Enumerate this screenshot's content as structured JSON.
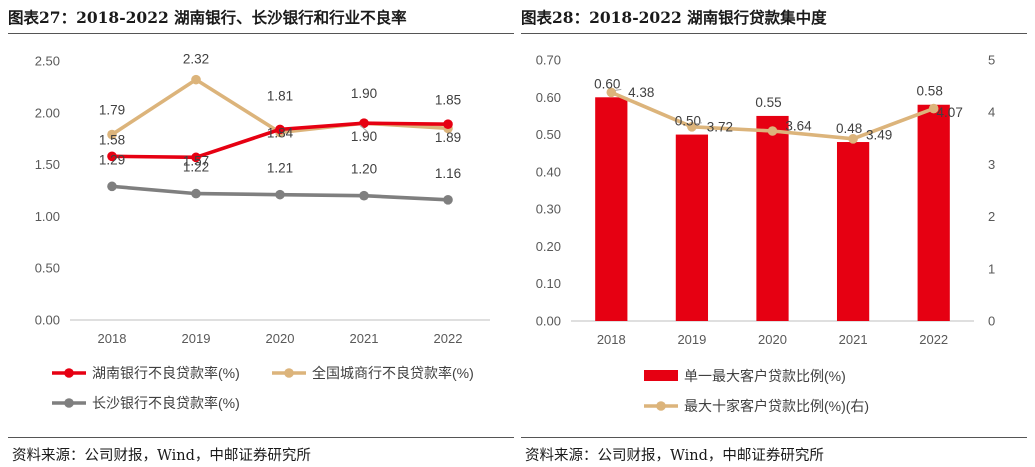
{
  "left": {
    "title": "图表27：2018-2022 湖南银行、长沙银行和行业不良率",
    "source": "资料来源：公司财报，Wind，中邮证券研究所",
    "chart_data": {
      "type": "line",
      "categories": [
        "2018",
        "2019",
        "2020",
        "2021",
        "2022"
      ],
      "ylim": [
        0,
        2.5
      ],
      "yticks": [
        "0.00",
        "0.50",
        "1.00",
        "1.50",
        "2.00",
        "2.50"
      ],
      "legend_position": "bottom",
      "series": [
        {
          "name": "湖南银行不良贷款率(%)",
          "color": "#e60012",
          "values": [
            1.58,
            1.57,
            1.84,
            1.9,
            1.89
          ],
          "labels": [
            "1.58",
            "1.57",
            "1.84",
            "1.90",
            "1.89"
          ]
        },
        {
          "name": "全国城商行不良贷款率(%)",
          "color": "#dcb47b",
          "values": [
            1.79,
            2.32,
            1.81,
            1.9,
            1.85
          ],
          "labels": [
            "1.79",
            "2.32",
            "1.81",
            "1.90",
            "1.85"
          ]
        },
        {
          "name": "长沙银行不良贷款率(%)",
          "color": "#7f7f7f",
          "values": [
            1.29,
            1.22,
            1.21,
            1.2,
            1.16
          ],
          "labels": [
            "1.29",
            "1.22",
            "1.21",
            "1.20",
            "1.16"
          ]
        }
      ]
    }
  },
  "right": {
    "title": "图表28：2018-2022 湖南银行贷款集中度",
    "source": "资料来源：公司财报，Wind，中邮证券研究所",
    "chart_data": {
      "type": "bar+line",
      "categories": [
        "2018",
        "2019",
        "2020",
        "2021",
        "2022"
      ],
      "ylim_left": [
        0,
        0.7
      ],
      "yticks_left": [
        "0.00",
        "0.10",
        "0.20",
        "0.30",
        "0.40",
        "0.50",
        "0.60",
        "0.70"
      ],
      "ylim_right": [
        0,
        5
      ],
      "yticks_right": [
        "0",
        "1",
        "2",
        "3",
        "4",
        "5"
      ],
      "legend_position": "bottom",
      "series": [
        {
          "name": "单一最大客户贷款比例(%)",
          "type": "bar",
          "axis": "left",
          "color": "#e60012",
          "values": [
            0.6,
            0.5,
            0.55,
            0.48,
            0.58
          ],
          "labels": [
            "0.60",
            "0.50",
            "0.55",
            "0.48",
            "0.58"
          ]
        },
        {
          "name": "最大十家客户贷款比例(%)(右)",
          "type": "line",
          "axis": "right",
          "color": "#dcb47b",
          "values": [
            4.38,
            3.72,
            3.64,
            3.49,
            4.07
          ],
          "labels": [
            "4.38",
            "3.72",
            "3.64",
            "3.49",
            "4.07"
          ]
        }
      ]
    }
  }
}
